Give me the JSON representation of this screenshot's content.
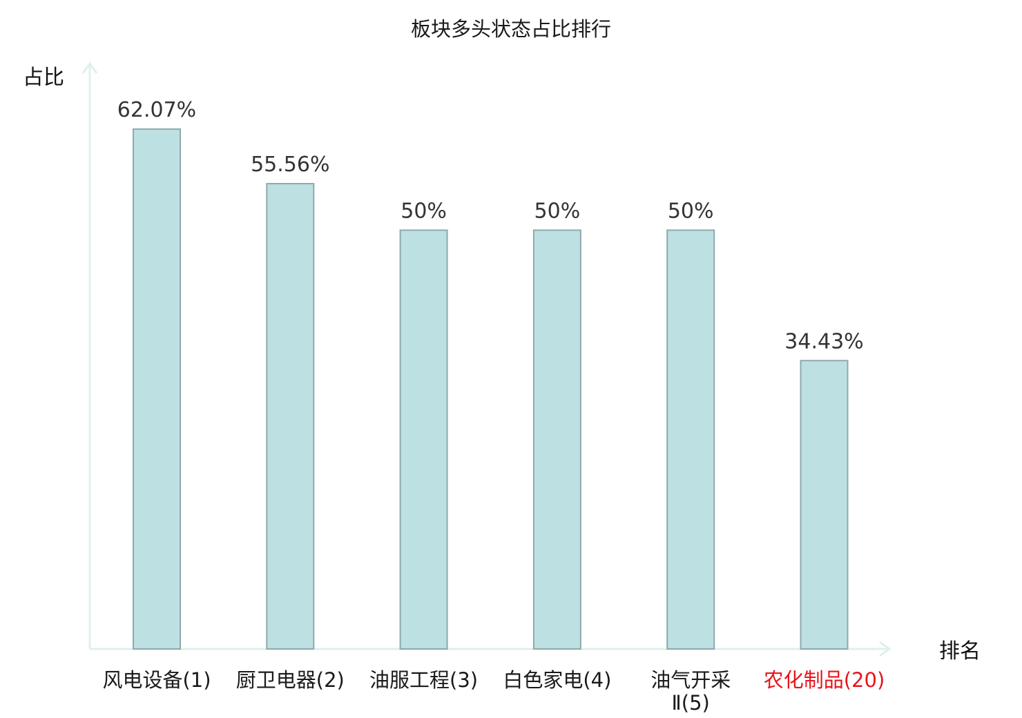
{
  "chart_data": {
    "type": "bar",
    "title": "板块多头状态占比排行",
    "ylabel": "占比",
    "xlabel": "排名",
    "ylim": [
      0,
      70
    ],
    "grid": false,
    "categories": [
      {
        "label": "风电设备(1)",
        "lines": [
          "风电设备(1)"
        ],
        "highlight": false
      },
      {
        "label": "厨卫电器(2)",
        "lines": [
          "厨卫电器(2)"
        ],
        "highlight": false
      },
      {
        "label": "油服工程(3)",
        "lines": [
          "油服工程(3)"
        ],
        "highlight": false
      },
      {
        "label": "白色家电(4)",
        "lines": [
          "白色家电(4)"
        ],
        "highlight": false
      },
      {
        "label": "油气开采Ⅱ(5)",
        "lines": [
          "油气开采",
          "Ⅱ(5)"
        ],
        "highlight": false
      },
      {
        "label": "农化制品(20)",
        "lines": [
          "农化制品(20)"
        ],
        "highlight": true
      }
    ],
    "values": [
      62.07,
      55.56,
      50,
      50,
      50,
      34.43
    ],
    "value_labels": [
      "62.07%",
      "55.56%",
      "50%",
      "50%",
      "50%",
      "34.43%"
    ],
    "colors": {
      "bar_fill": "#bde0e3",
      "bar_stroke": "#8fa9ab",
      "axis": "#dff0ee",
      "label_text": "#1a1a1a",
      "highlight_text": "#e8141b",
      "value_text": "#333333"
    }
  }
}
